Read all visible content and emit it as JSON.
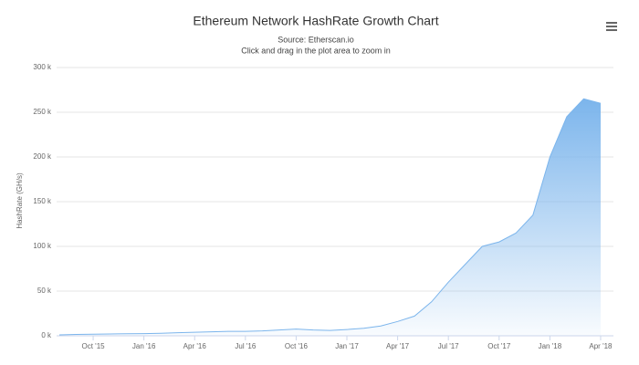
{
  "chart_data": {
    "type": "area",
    "title": "Ethereum Network HashRate Growth Chart",
    "subtitle": "Source: Etherscan.io",
    "note": "Click and drag in the plot area to zoom in",
    "y_label": "HashRate (GH/s)",
    "color": "#7cb5ec",
    "x": [
      "2015-08",
      "2015-09",
      "2015-10",
      "2015-11",
      "2015-12",
      "2016-01",
      "2016-02",
      "2016-03",
      "2016-04",
      "2016-05",
      "2016-06",
      "2016-07",
      "2016-08",
      "2016-09",
      "2016-10",
      "2016-11",
      "2016-12",
      "2017-01",
      "2017-02",
      "2017-03",
      "2017-04",
      "2017-05",
      "2017-06",
      "2017-07",
      "2017-08",
      "2017-09",
      "2017-10",
      "2017-11",
      "2017-12",
      "2018-01",
      "2018-02",
      "2018-03",
      "2018-04"
    ],
    "values": [
      1000,
      1500,
      1800,
      2000,
      2200,
      2500,
      2800,
      3500,
      4000,
      4500,
      5000,
      5000,
      5500,
      6500,
      7500,
      6500,
      6000,
      7000,
      8500,
      11000,
      16000,
      22000,
      38000,
      60000,
      80000,
      100000,
      105000,
      115000,
      135000,
      200000,
      245000,
      265000,
      260000
    ],
    "ylim": [
      0,
      300000
    ],
    "yticks": [
      {
        "value": 0,
        "label": "0 k"
      },
      {
        "value": 50000,
        "label": "50 k"
      },
      {
        "value": 100000,
        "label": "100 k"
      },
      {
        "value": 150000,
        "label": "150 k"
      },
      {
        "value": 200000,
        "label": "200 k"
      },
      {
        "value": 250000,
        "label": "250 k"
      },
      {
        "value": 300000,
        "label": "300 k"
      }
    ],
    "xticks": [
      {
        "value": "2015-10",
        "label": "Oct '15"
      },
      {
        "value": "2016-01",
        "label": "Jan '16"
      },
      {
        "value": "2016-04",
        "label": "Apr '16"
      },
      {
        "value": "2016-07",
        "label": "Jul '16"
      },
      {
        "value": "2016-10",
        "label": "Oct '16"
      },
      {
        "value": "2017-01",
        "label": "Jan '17"
      },
      {
        "value": "2017-04",
        "label": "Apr '17"
      },
      {
        "value": "2017-07",
        "label": "Jul '17"
      },
      {
        "value": "2017-10",
        "label": "Oct '17"
      },
      {
        "value": "2018-01",
        "label": "Jan '18"
      },
      {
        "value": "2018-04",
        "label": "Apr '18"
      }
    ],
    "grid": true
  }
}
